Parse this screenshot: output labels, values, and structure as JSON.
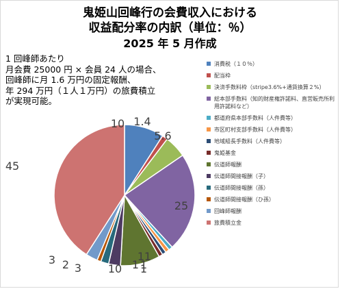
{
  "chart_data": {
    "type": "pie",
    "title_line1": "鬼姫山回峰行の会費収入における",
    "title_line2": "収益配分率の内訳（単位：％）",
    "subtitle": "2025 年 5 月作成",
    "annotation": [
      "1 回峰師あたり",
      "月会費 25000 円 × 会員 24 人の場合、",
      "回峰師に月 1.6 万円の固定報酬、",
      "年 294 万円（１人１万円）の旅費積立",
      "が実現可能。"
    ],
    "slices": [
      {
        "name": "消費税（１０％）",
        "value": 10,
        "label": "10",
        "color": "#4f81bd"
      },
      {
        "name": "配当枠",
        "value": 1.4,
        "label": "1.4",
        "color": "#c0504d"
      },
      {
        "name": "決済手数料枠（stripe3.6%+通貨換算２%）",
        "value": 5.6,
        "label": "5.6",
        "color": "#9bbb59"
      },
      {
        "name": "総本部手数料（知的財産権許諾料、直営販売所利用許諾料など）",
        "value": 25,
        "label": "25",
        "color": "#8064a2"
      },
      {
        "name": "都道府県本部手数料（人件費等）",
        "value": 1,
        "label": "1",
        "color": "#4bacc6"
      },
      {
        "name": "市区町村支部手数料（人件費等）",
        "value": 1,
        "label": "1",
        "color": "#f79646"
      },
      {
        "name": "地域組長手数料（人件費等）",
        "value": 1,
        "label": "1",
        "color": "#2c4d75"
      },
      {
        "name": "鬼姫基金",
        "value": 1,
        "label": "1",
        "color": "#772c2a"
      },
      {
        "name": "伝道師報酬",
        "value": 10,
        "label": "10",
        "color": "#5f7530"
      },
      {
        "name": "伝道師間接報酬（子）",
        "value": 3,
        "label": "3",
        "color": "#4d3b62"
      },
      {
        "name": "伝道師間接報酬（孫）",
        "value": 2,
        "label": "2",
        "color": "#276a7c"
      },
      {
        "name": "伝道師間接報酬（ひ孫）",
        "value": 1,
        "label": "1",
        "color": "#b65708"
      },
      {
        "name": "回峰師報酬",
        "value": 3,
        "label": "3",
        "color": "#729aca"
      },
      {
        "name": "旅費積立金",
        "value": 45,
        "label": "45",
        "color": "#cd7371"
      }
    ]
  }
}
